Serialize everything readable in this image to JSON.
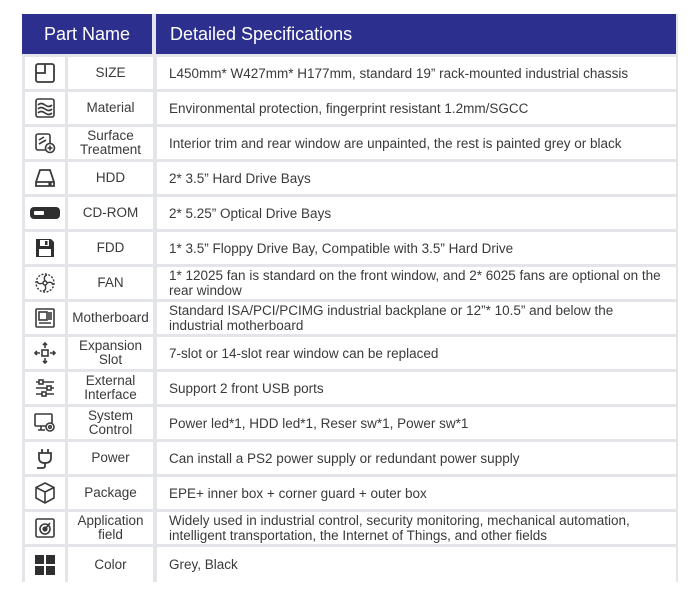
{
  "header": {
    "part_name": "Part Name",
    "specs": "Detailed Specifications"
  },
  "rows": [
    {
      "icon": "resize-icon",
      "name": "SIZE",
      "spec": "L450mm* W427mm* H177mm, standard 19” rack-mounted industrial chassis"
    },
    {
      "icon": "material-layers-icon",
      "name": "Material",
      "spec": "Environmental protection, fingerprint resistant 1.2mm/SGCC"
    },
    {
      "icon": "surface-treatment-icon",
      "name": "Surface Treatment",
      "spec": "Interior trim and rear window are unpainted, the rest is painted grey or black"
    },
    {
      "icon": "hdd-icon",
      "name": "HDD",
      "spec": "2* 3.5” Hard Drive Bays"
    },
    {
      "icon": "cd-rom-icon",
      "name": "CD-ROM",
      "spec": "2* 5.25” Optical Drive Bays"
    },
    {
      "icon": "floppy-disk-icon",
      "name": "FDD",
      "spec": "1* 3.5” Floppy Drive Bay, Compatible with 3.5” Hard Drive"
    },
    {
      "icon": "fan-icon",
      "name": "FAN",
      "spec": "1* 12025 fan is standard on the front window, and 2* 6025 fans are optional on the rear window"
    },
    {
      "icon": "motherboard-icon",
      "name": "Motherboard",
      "spec": "Standard ISA/PCI/PCIMG industrial backplane or 12”* 10.5” and below the industrial motherboard"
    },
    {
      "icon": "expansion-arrows-icon",
      "name": "Expansion Slot",
      "spec": "7-slot or 14-slot rear window can be replaced"
    },
    {
      "icon": "sliders-icon",
      "name": "External Interface",
      "spec": "Support 2 front USB ports"
    },
    {
      "icon": "monitor-gear-icon",
      "name": "System Control",
      "spec": "Power led*1, HDD led*1, Reser sw*1, Power sw*1"
    },
    {
      "icon": "power-plug-icon",
      "name": "Power",
      "spec": "Can install a PS2 power supply or redundant power supply"
    },
    {
      "icon": "package-box-icon",
      "name": "Package",
      "spec": "EPE+ inner box + corner guard + outer box"
    },
    {
      "icon": "target-document-icon",
      "name": "Application field",
      "spec": "Widely used in industrial control, security monitoring, mechanical automation, intelligent transportation, the Internet of Things, and other fields"
    },
    {
      "icon": "color-grid-icon",
      "name": "Color",
      "spec": "Grey, Black"
    }
  ]
}
